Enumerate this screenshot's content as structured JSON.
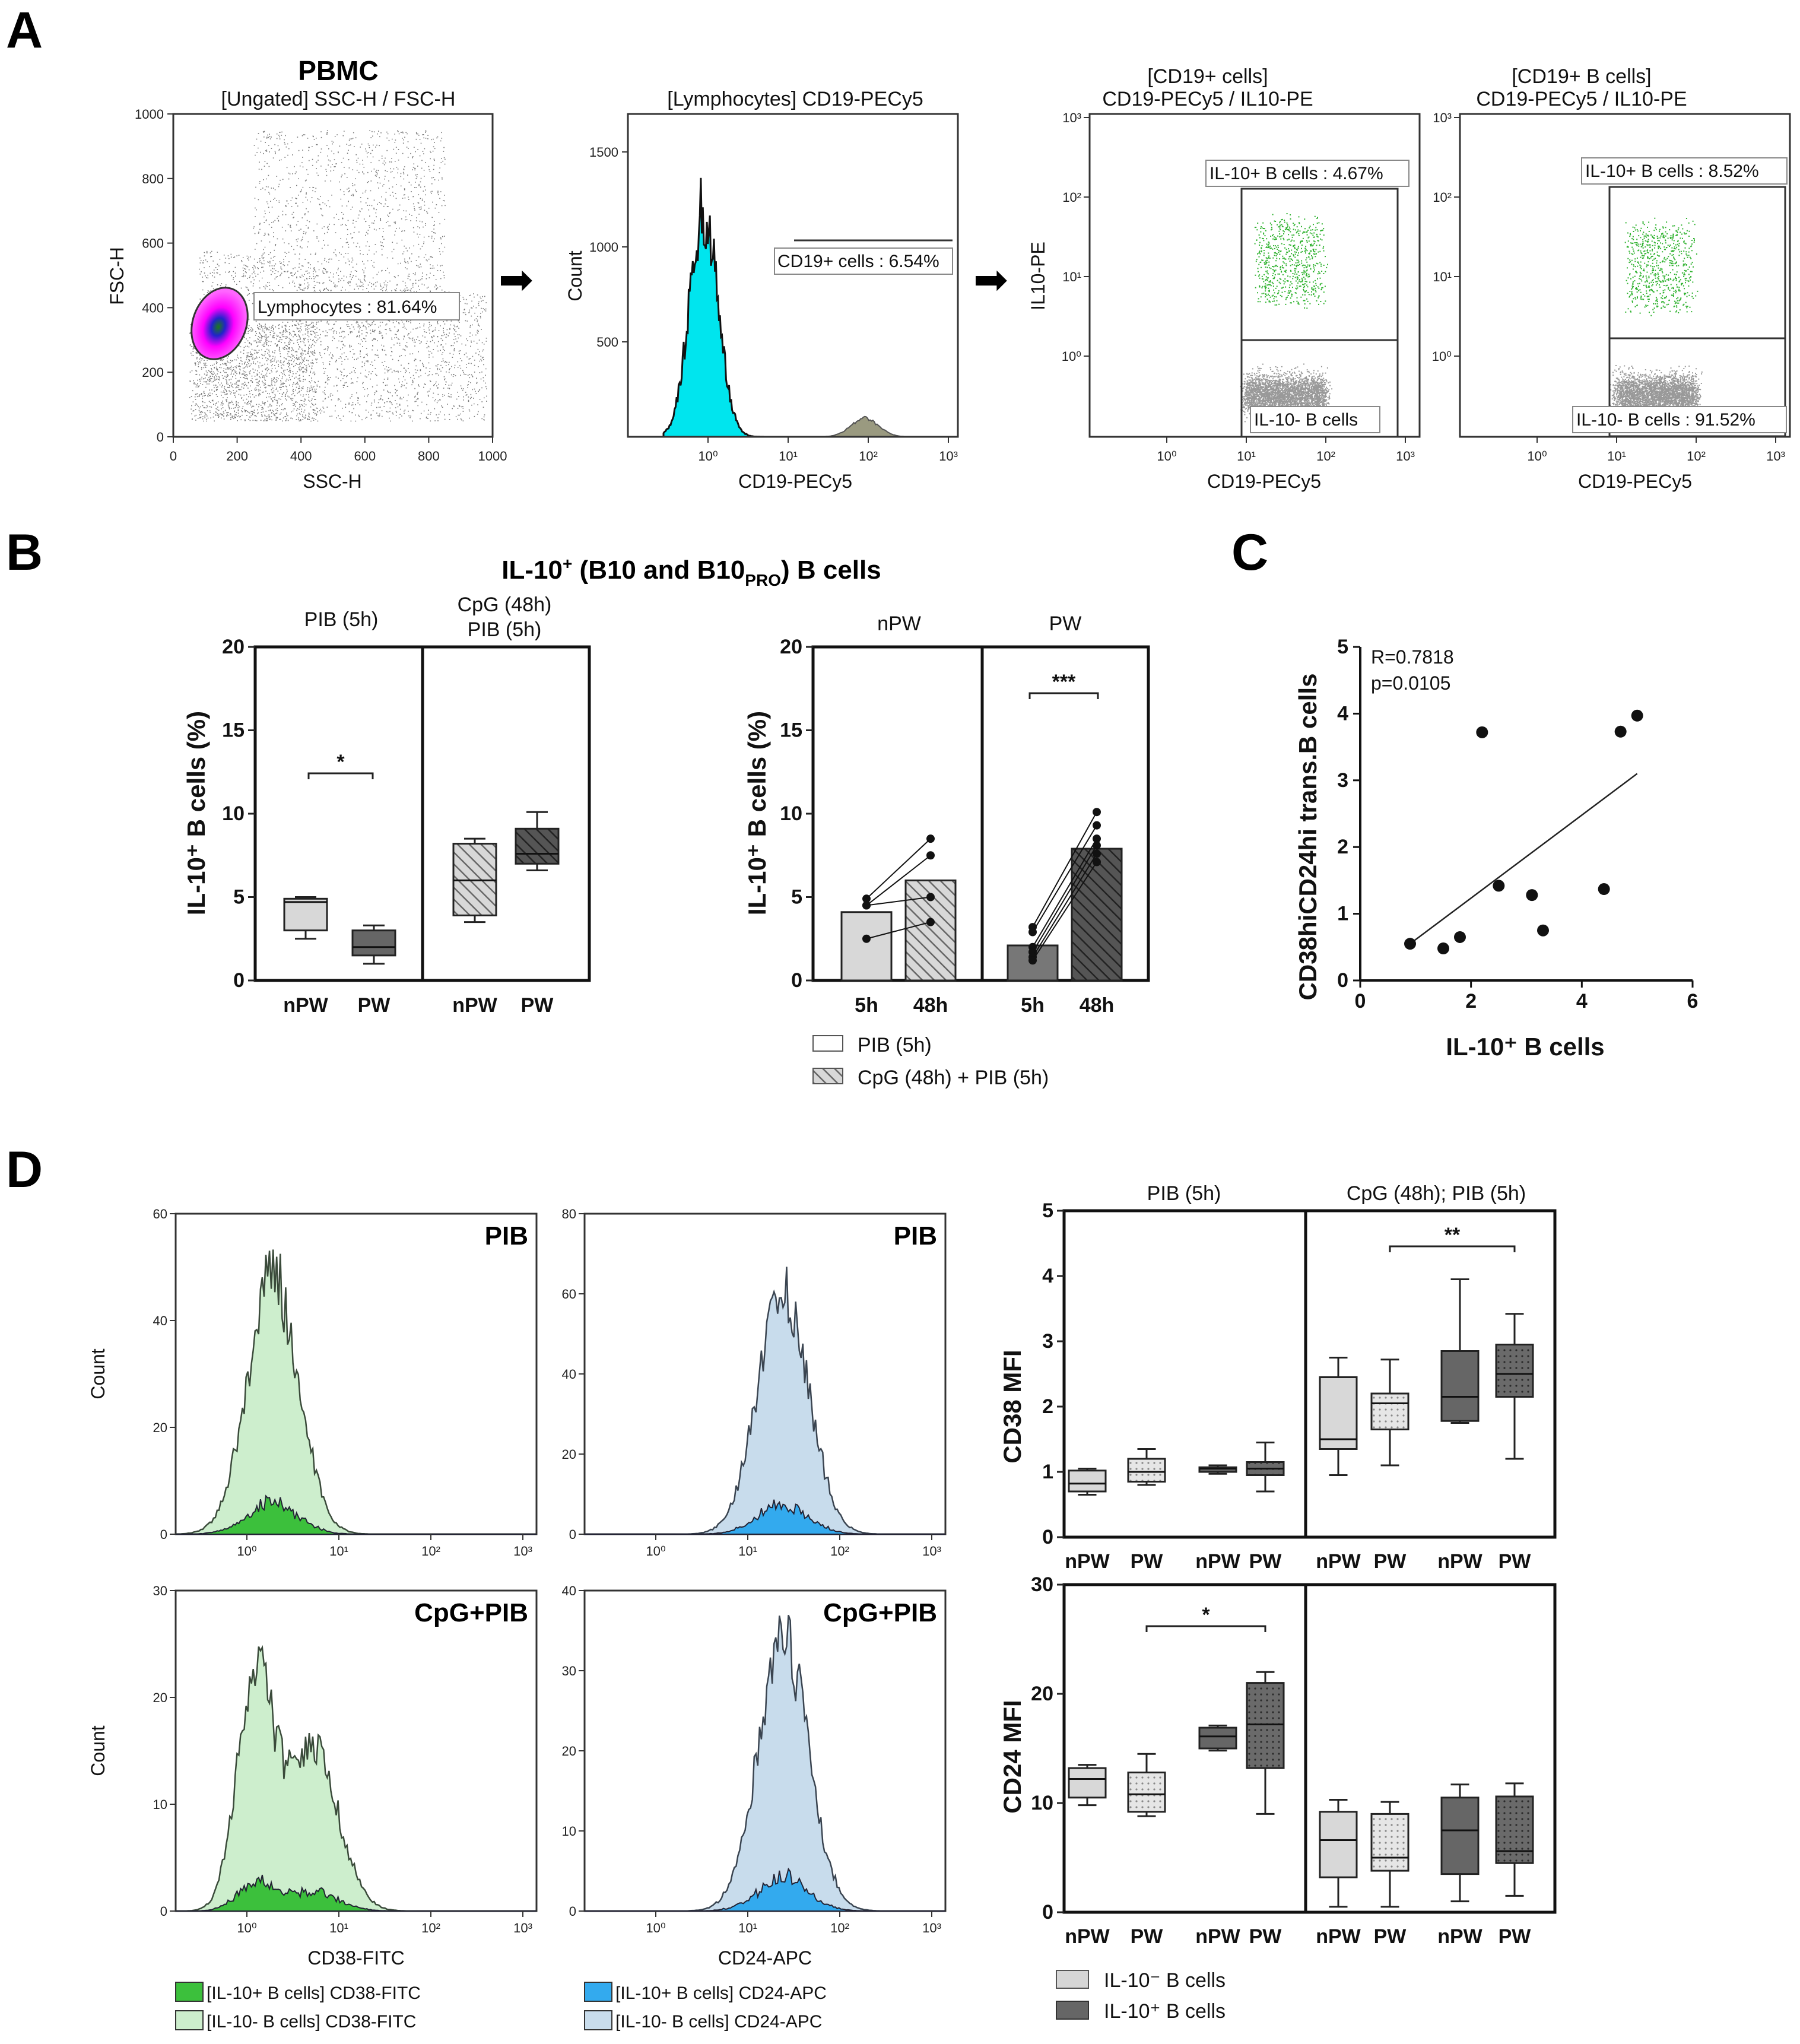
{
  "panel_labels": {
    "a": "A",
    "b": "B",
    "c": "C",
    "d": "D"
  },
  "panel_a": {
    "pbmc": {
      "title": "PBMC",
      "subtitle": "[Ungated] SSC-H / FSC-H",
      "xlabel": "SSC-H",
      "ylabel": "FSC-H",
      "xticks": [
        "0",
        "200",
        "400",
        "600",
        "800",
        "1000"
      ],
      "yticks": [
        "0",
        "200",
        "400",
        "600",
        "800",
        "1000"
      ],
      "gate_label": "Lymphocytes : 81.64%"
    },
    "cd19_hist": {
      "title": "[Lymphocytes] CD19-PECy5",
      "xlabel": "CD19-PECy5",
      "ylabel": "Count",
      "yticks": [
        "500",
        "1000",
        "1500"
      ],
      "xticks": [
        "10⁰",
        "10¹",
        "10²",
        "10³"
      ],
      "gate_label": "CD19+ cells : 6.54%"
    },
    "il10_1": {
      "title1": "[CD19+ cells]",
      "title2": "CD19-PECy5 / IL10-PE",
      "xlabel": "CD19-PECy5",
      "ylabel": "IL10-PE",
      "pos_label": "IL-10+ B cells : 4.67%",
      "neg_label": "IL-10- B cells",
      "ticks": [
        "10⁰",
        "10¹",
        "10²",
        "10³"
      ]
    },
    "il10_2": {
      "title1": "[CD19+ B cells]",
      "title2": "CD19-PECy5 / IL10-PE",
      "xlabel": "CD19-PECy5",
      "pos_label": "IL-10+ B cells : 8.52%",
      "neg_label": "IL-10- B cells : 91.52%",
      "ticks": [
        "10⁰",
        "10¹",
        "10²",
        "10³"
      ]
    }
  },
  "panel_b": {
    "title": "IL-10⁺ (B10 and B10PRO) B cells",
    "title_main": "IL-10",
    "title_sup": "+",
    "title_mid": " (B10 and B10",
    "title_sub": "PRO",
    "title_end": ") B cells",
    "ylabel": "IL-10⁺ B cells (%)",
    "left": {
      "col1": "PIB (5h)",
      "col2a": "CpG (48h)",
      "col2b": "PIB (5h)",
      "xcats": [
        "nPW",
        "PW",
        "nPW",
        "PW"
      ],
      "sig": "*"
    },
    "right": {
      "col1": "nPW",
      "col2": "PW",
      "xcats": [
        "5h",
        "48h",
        "5h",
        "48h"
      ],
      "sig": "***"
    },
    "legend": [
      "PIB (5h)",
      "CpG (48h) + PIB (5h)"
    ]
  },
  "panel_c": {
    "r_text": "R=0.7818",
    "p_text": "p=0.0105",
    "xlabel": "IL-10⁺ B cells",
    "ylabel": "CD38hiCD24hi trans.B cells"
  },
  "panel_d": {
    "hists": {
      "tl": {
        "tag": "PIB",
        "ylabel": "Count"
      },
      "tr": {
        "tag": "PIB"
      },
      "bl": {
        "tag": "CpG+PIB",
        "ylabel": "Count",
        "xlabel": "CD38-FITC"
      },
      "br": {
        "tag": "CpG+PIB",
        "xlabel": "CD24-APC"
      }
    },
    "hist_xticks": [
      "10⁰",
      "10¹",
      "10²",
      "10³"
    ],
    "legend_cd38": [
      "[IL-10+ B cells] CD38-FITC",
      "[IL-10- B cells] CD38-FITC"
    ],
    "legend_cd24": [
      "[IL-10+ B cells] CD24-APC",
      "[IL-10- B cells] CD24-APC"
    ],
    "box_top": {
      "col1": "PIB (5h)",
      "col2": "CpG (48h); PIB (5h)",
      "ylabel": "CD38 MFI",
      "sig": "**"
    },
    "box_bottom": {
      "ylabel": "CD24 MFI",
      "sig": "*"
    },
    "box_xcats": [
      "nPW",
      "PW",
      "nPW",
      "PW",
      "nPW",
      "PW",
      "nPW",
      "PW"
    ],
    "legend": [
      "IL-10⁻ B cells",
      "IL-10⁺ B cells"
    ]
  },
  "chart_data": [
    {
      "id": "B-left",
      "type": "box",
      "title": "IL-10+ B cells (%) PIB vs CpG+PIB",
      "ylim": [
        0,
        20
      ],
      "yticks": [
        0,
        5,
        10,
        15,
        20
      ],
      "categories": [
        "nPW PIB",
        "PW PIB",
        "nPW CpG+PIB",
        "PW CpG+PIB"
      ],
      "boxes": [
        {
          "min": 2.5,
          "q1": 3.0,
          "median": 4.7,
          "q3": 4.9,
          "max": 5.0
        },
        {
          "min": 1.0,
          "q1": 1.5,
          "median": 2.0,
          "q3": 3.0,
          "max": 3.3
        },
        {
          "min": 3.5,
          "q1": 3.9,
          "median": 6.0,
          "q3": 8.2,
          "max": 8.5
        },
        {
          "min": 6.6,
          "q1": 7.0,
          "median": 7.6,
          "q3": 9.1,
          "max": 10.1
        }
      ]
    },
    {
      "id": "B-right",
      "type": "bar",
      "ylim": [
        0,
        20
      ],
      "yticks": [
        0,
        5,
        10,
        15,
        20
      ],
      "categories": [
        "nPW 5h",
        "nPW 48h",
        "PW 5h",
        "PW 48h"
      ],
      "values": [
        4.1,
        6.0,
        2.1,
        7.9
      ],
      "paired_points": [
        [
          [
            4.9,
            8.5
          ],
          [
            4.5,
            7.5
          ],
          [
            4.5,
            5.0
          ],
          [
            2.5,
            3.5
          ]
        ],
        [
          [
            3.2,
            10.1
          ],
          [
            2.9,
            9.3
          ],
          [
            2.0,
            8.5
          ],
          [
            1.7,
            8.1
          ],
          [
            1.4,
            7.6
          ],
          [
            1.2,
            7.1
          ]
        ]
      ]
    },
    {
      "id": "C",
      "type": "scatter",
      "xlim": [
        0,
        6
      ],
      "ylim": [
        0,
        5
      ],
      "xticks": [
        0,
        2,
        4,
        6
      ],
      "yticks": [
        0,
        1,
        2,
        3,
        4,
        5
      ],
      "x": [
        0.9,
        1.5,
        1.8,
        2.2,
        2.5,
        3.1,
        3.3,
        4.4,
        4.7,
        5.0
      ],
      "y": [
        0.55,
        0.48,
        0.65,
        3.72,
        1.42,
        1.28,
        0.75,
        1.37,
        3.73,
        3.97
      ],
      "fit": [
        [
          0.9,
          0.55
        ],
        [
          5.0,
          3.1
        ]
      ]
    },
    {
      "id": "D-hist",
      "type": "area",
      "ylim_tl": [
        0,
        60
      ],
      "ylim_tr": [
        0,
        80
      ],
      "ylim_bl": [
        0,
        30
      ],
      "ylim_br": [
        0,
        40
      ],
      "yticks_tl": [
        0,
        20,
        40,
        60
      ],
      "yticks_tr": [
        0,
        20,
        40,
        60,
        80
      ],
      "yticks_bl": [
        0,
        10,
        20,
        30
      ],
      "yticks_br": [
        0,
        10,
        20,
        30,
        40
      ]
    },
    {
      "id": "D-CD38",
      "type": "box",
      "ylim": [
        0,
        5
      ],
      "yticks": [
        0,
        1,
        2,
        3,
        4,
        5
      ],
      "boxes": [
        {
          "min": 0.65,
          "q1": 0.7,
          "median": 0.82,
          "q3": 1.02,
          "max": 1.05
        },
        {
          "min": 0.8,
          "q1": 0.85,
          "median": 1.0,
          "q3": 1.2,
          "max": 1.35
        },
        {
          "min": 0.97,
          "q1": 1.0,
          "median": 1.05,
          "q3": 1.07,
          "max": 1.1
        },
        {
          "min": 0.7,
          "q1": 0.95,
          "median": 1.05,
          "q3": 1.15,
          "max": 1.45
        },
        {
          "min": 0.95,
          "q1": 1.35,
          "median": 1.5,
          "q3": 2.45,
          "max": 2.75
        },
        {
          "min": 1.1,
          "q1": 1.65,
          "median": 2.05,
          "q3": 2.2,
          "max": 2.72
        },
        {
          "min": 1.75,
          "q1": 1.78,
          "median": 2.15,
          "q3": 2.85,
          "max": 3.95
        },
        {
          "min": 1.2,
          "q1": 2.15,
          "median": 2.5,
          "q3": 2.95,
          "max": 3.42
        }
      ]
    },
    {
      "id": "D-CD24",
      "type": "box",
      "ylim": [
        0,
        30
      ],
      "yticks": [
        0,
        10,
        20,
        30
      ],
      "boxes": [
        {
          "min": 9.8,
          "q1": 10.5,
          "median": 12.2,
          "q3": 13.2,
          "max": 13.5
        },
        {
          "min": 8.8,
          "q1": 9.2,
          "median": 10.8,
          "q3": 12.8,
          "max": 14.5
        },
        {
          "min": 14.8,
          "q1": 15.0,
          "median": 16.1,
          "q3": 16.9,
          "max": 17.1
        },
        {
          "min": 9.0,
          "q1": 13.2,
          "median": 17.2,
          "q3": 21.0,
          "max": 22.0
        },
        {
          "min": 0.5,
          "q1": 3.2,
          "median": 6.6,
          "q3": 9.2,
          "max": 10.3
        },
        {
          "min": 0.5,
          "q1": 3.8,
          "median": 5.0,
          "q3": 9.0,
          "max": 10.1
        },
        {
          "min": 1.0,
          "q1": 3.5,
          "median": 7.5,
          "q3": 10.5,
          "max": 11.7
        },
        {
          "min": 1.5,
          "q1": 4.5,
          "median": 5.6,
          "q3": 10.6,
          "max": 11.8
        }
      ]
    }
  ]
}
